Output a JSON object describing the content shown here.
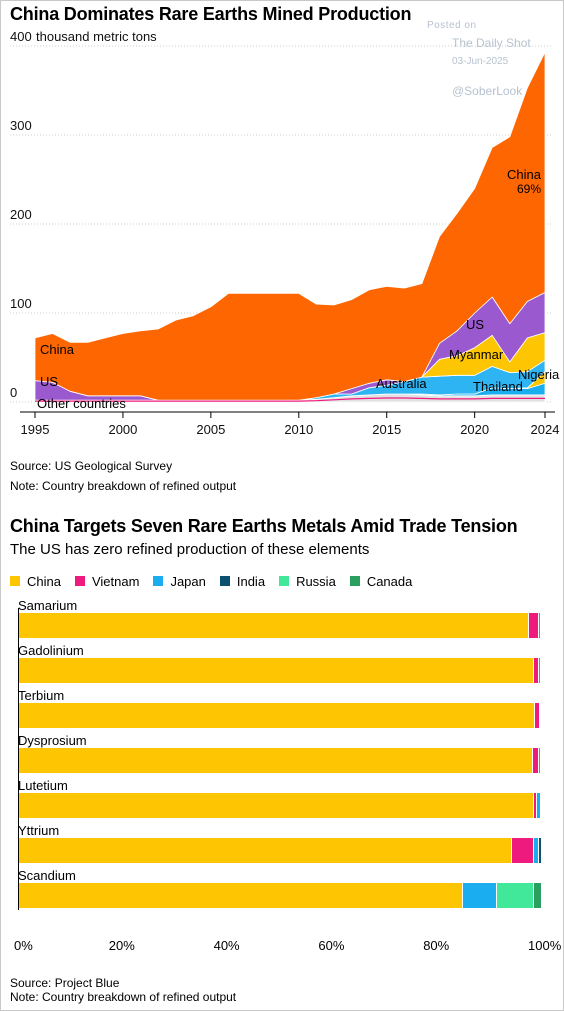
{
  "top_chart": {
    "title": "China Dominates Rare Earths Mined Production",
    "unit_label": "thousand metric tons",
    "watermark": {
      "posted": "Posted on",
      "site": "The Daily Shot",
      "date": "03-Jun-2025",
      "handle": "@SoberLook"
    },
    "source": "Source: US Geological Survey",
    "note": "Note: Country breakdown of refined output",
    "labels": {
      "china": "China",
      "china_share": "69%",
      "us": "US",
      "other": "Other countries",
      "australia": "Australia",
      "myanmar": "Myanmar",
      "thailand": "Thailand",
      "nigeria": "Nigeria"
    }
  },
  "bottom_chart": {
    "title": "China Targets Seven Rare Earths Metals Amid Trade Tension",
    "subtitle": "The US has zero refined production of these elements",
    "source": "Source: Project Blue",
    "note": "Note: Country breakdown of refined output"
  },
  "colors": {
    "china": "#fe6601",
    "us": "#9b59d0",
    "myanmar": "#fdc502",
    "australia": "#2eb4f2",
    "other": "#e2e2e2",
    "vietnam": "#ef1a7d",
    "japan": "#1aaef0",
    "india": "#0c5170",
    "russia": "#42e89a",
    "canada": "#2aa060"
  },
  "chart_data": [
    {
      "type": "area",
      "title": "China Dominates Rare Earths Mined Production",
      "ylabel": "thousand metric tons",
      "ylim": [
        0,
        400
      ],
      "yticks": [
        0,
        100,
        200,
        300,
        400
      ],
      "xticks": [
        1995,
        2000,
        2005,
        2010,
        2015,
        2020,
        2024
      ],
      "xlim": [
        1995,
        2024
      ],
      "x": [
        1995,
        1996,
        1997,
        1998,
        1999,
        2000,
        2001,
        2002,
        2003,
        2004,
        2005,
        2006,
        2007,
        2008,
        2009,
        2010,
        2011,
        2012,
        2013,
        2014,
        2015,
        2016,
        2017,
        2018,
        2019,
        2020,
        2021,
        2022,
        2023,
        2024
      ],
      "series": [
        {
          "name": "Other countries",
          "values": [
            2,
            2,
            2,
            2,
            2,
            2,
            2,
            2,
            2,
            2,
            2,
            2,
            2,
            2,
            2,
            2,
            3,
            5,
            7,
            8,
            9,
            9,
            8,
            7,
            7,
            7,
            8,
            8,
            8,
            8
          ]
        },
        {
          "name": "Thailand",
          "values": [
            0,
            0,
            0,
            0,
            0,
            0,
            0,
            0,
            0,
            0,
            0,
            0,
            0,
            0,
            0,
            0,
            0,
            0,
            0,
            0,
            0,
            0,
            1,
            1,
            2,
            2,
            8,
            7,
            7,
            13
          ]
        },
        {
          "name": "Nigeria",
          "values": [
            0,
            0,
            0,
            0,
            0,
            0,
            0,
            0,
            0,
            0,
            0,
            0,
            0,
            0,
            0,
            0,
            0,
            0,
            0,
            0,
            0,
            0,
            0,
            0,
            0,
            0,
            0,
            0,
            1,
            13
          ]
        },
        {
          "name": "Australia",
          "values": [
            0,
            0,
            0,
            0,
            0,
            0,
            0,
            0,
            0,
            0,
            0,
            0,
            0,
            0,
            0,
            0,
            2,
            4,
            2,
            8,
            10,
            14,
            19,
            21,
            21,
            21,
            24,
            18,
            18,
            13
          ]
        },
        {
          "name": "Myanmar",
          "values": [
            0,
            0,
            0,
            0,
            0,
            0,
            0,
            0,
            0,
            0,
            0,
            0,
            0,
            0,
            0,
            0,
            0,
            0,
            0,
            0,
            0,
            0,
            0,
            19,
            22,
            31,
            35,
            12,
            38,
            31
          ]
        },
        {
          "name": "US",
          "values": [
            22,
            20,
            10,
            5,
            5,
            5,
            5,
            0,
            0,
            0,
            0,
            0,
            0,
            0,
            0,
            0,
            0,
            0,
            6,
            5,
            6,
            0,
            0,
            18,
            28,
            39,
            43,
            43,
            41,
            45
          ]
        },
        {
          "name": "China",
          "values": [
            48,
            55,
            55,
            60,
            65,
            70,
            73,
            80,
            90,
            95,
            105,
            120,
            120,
            120,
            120,
            120,
            105,
            100,
            100,
            105,
            105,
            105,
            105,
            120,
            132,
            140,
            168,
            210,
            240,
            270
          ]
        }
      ],
      "annotations": [
        "China",
        "69%",
        "US",
        "Other countries",
        "Australia",
        "Myanmar",
        "Thailand",
        "Nigeria"
      ]
    },
    {
      "type": "bar",
      "orientation": "horizontal",
      "stacked": true,
      "title": "China Targets Seven Rare Earths Metals Amid Trade Tension",
      "subtitle": "The US has zero refined production of these elements",
      "xlim": [
        0,
        100
      ],
      "xticks": [
        "0%",
        "20%",
        "40%",
        "60%",
        "80%",
        "100%"
      ],
      "legend": [
        "China",
        "Vietnam",
        "Japan",
        "India",
        "Russia",
        "Canada"
      ],
      "legend_position": "top",
      "categories": [
        "Samarium",
        "Gadolinium",
        "Terbium",
        "Dysprosium",
        "Lutetium",
        "Yttrium",
        "Scandium"
      ],
      "series": [
        {
          "name": "China",
          "values": [
            97.5,
            98.5,
            98.8,
            98.2,
            98.5,
            94.2,
            85
          ]
        },
        {
          "name": "Vietnam",
          "values": [
            2,
            1,
            1,
            1.3,
            0.5,
            4.3,
            0
          ]
        },
        {
          "name": "Japan",
          "values": [
            0.3,
            0.3,
            0.1,
            0.3,
            0.8,
            1,
            6.5
          ]
        },
        {
          "name": "India",
          "values": [
            0.2,
            0.2,
            0.1,
            0.2,
            0.2,
            0.5,
            0
          ]
        },
        {
          "name": "Russia",
          "values": [
            0,
            0,
            0,
            0,
            0,
            0,
            7
          ]
        },
        {
          "name": "Canada",
          "values": [
            0,
            0,
            0,
            0,
            0,
            0,
            1.5
          ]
        }
      ]
    }
  ]
}
